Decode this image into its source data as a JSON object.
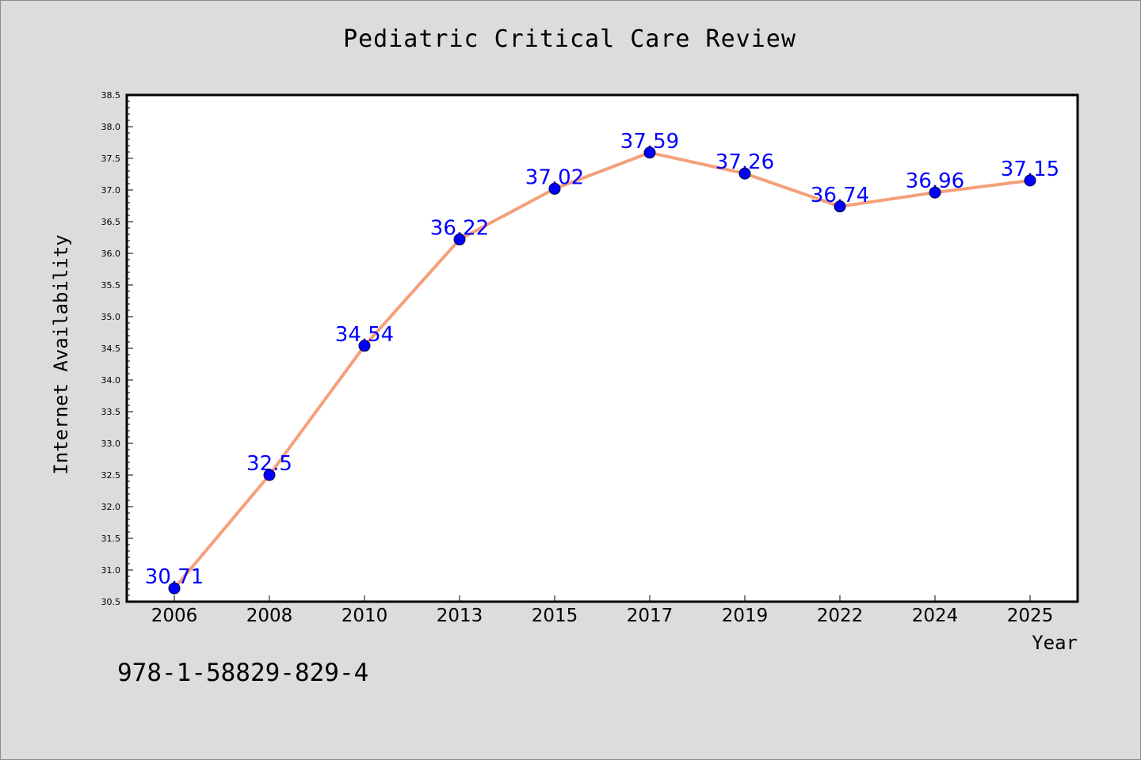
{
  "title": "Pediatric Critical Care Review",
  "footer_code": "978-1-58829-829-4",
  "colors": {
    "background": "#dcdcdc",
    "plot_background": "#ffffff",
    "line": "#f5a07a",
    "marker": "#0000ff",
    "data_label": "#0000ff"
  },
  "chart_data": {
    "type": "line",
    "title": "Pediatric Critical Care Review",
    "xlabel": "Year",
    "ylabel": "Internet Availability",
    "categories": [
      "2006",
      "2008",
      "2010",
      "2013",
      "2015",
      "2017",
      "2019",
      "2022",
      "2024",
      "2025"
    ],
    "series": [
      {
        "values": [
          30.71,
          32.5,
          34.54,
          36.22,
          37.02,
          37.59,
          37.26,
          36.74,
          36.96,
          37.15
        ],
        "labels": [
          "30.71",
          "32.5",
          "34.54",
          "36.22",
          "37.02",
          "37.59",
          "37.26",
          "36.74",
          "36.96",
          "37.15"
        ]
      }
    ],
    "ylim": [
      30.5,
      38.5
    ],
    "yticks": [
      "30.5",
      "31.0",
      "31.5",
      "32.0",
      "32.5",
      "33.0",
      "33.5",
      "34.0",
      "34.5",
      "35.0",
      "35.5",
      "36.0",
      "36.5",
      "37.0",
      "37.5",
      "38.0",
      "38.5"
    ],
    "grid": false,
    "legend": "none"
  }
}
